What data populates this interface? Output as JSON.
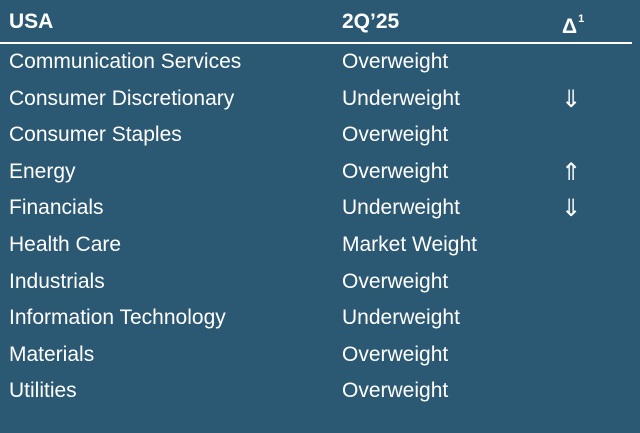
{
  "header": {
    "sector": "USA",
    "rating": "2Q’25",
    "change_symbol": "Δ",
    "change_footnote": "1"
  },
  "rows": [
    {
      "sector": "Communication Services",
      "rating": "Overweight",
      "change": ""
    },
    {
      "sector": "Consumer Discretionary",
      "rating": "Underweight",
      "change": "⇓"
    },
    {
      "sector": "Consumer Staples",
      "rating": "Overweight",
      "change": ""
    },
    {
      "sector": "Energy",
      "rating": "Overweight",
      "change": "⇑"
    },
    {
      "sector": "Financials",
      "rating": "Underweight",
      "change": "⇓"
    },
    {
      "sector": "Health Care",
      "rating": "Market Weight",
      "change": ""
    },
    {
      "sector": "Industrials",
      "rating": "Overweight",
      "change": ""
    },
    {
      "sector": "Information Technology",
      "rating": "Underweight",
      "change": ""
    },
    {
      "sector": "Materials",
      "rating": "Overweight",
      "change": ""
    },
    {
      "sector": "Utilities",
      "rating": "Overweight",
      "change": ""
    }
  ],
  "change_icons": {
    "⇓": "double-down-arrow-icon",
    "⇑": "double-up-arrow-icon"
  },
  "colors": {
    "background": "#2b5872",
    "text": "#ffffff"
  }
}
